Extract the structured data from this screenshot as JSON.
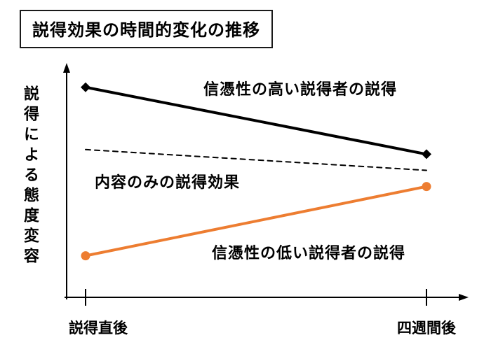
{
  "chart_data": {
    "type": "line",
    "title": "説得効果の時間的変化の推移",
    "ylabel": "説得による態度変容",
    "xlabel": "",
    "categories": [
      "説得直後",
      "四週間後"
    ],
    "ylim": [
      0,
      100
    ],
    "grid": false,
    "legend_position": "inline-annotations",
    "series": [
      {
        "name": "信憑性の高い説得者の説得",
        "values": [
          91,
          62
        ],
        "color": "#000000",
        "width": 4,
        "dash": "none",
        "marker": "diamond"
      },
      {
        "name": "内容のみの説得効果",
        "values": [
          64,
          55
        ],
        "color": "#000000",
        "width": 2,
        "dash": "7,6",
        "marker": "none"
      },
      {
        "name": "信憑性の低い説得者の説得",
        "values": [
          18,
          48
        ],
        "color": "#ED7D31",
        "width": 4,
        "dash": "none",
        "marker": "circle"
      }
    ],
    "axis_color": "#000000"
  }
}
